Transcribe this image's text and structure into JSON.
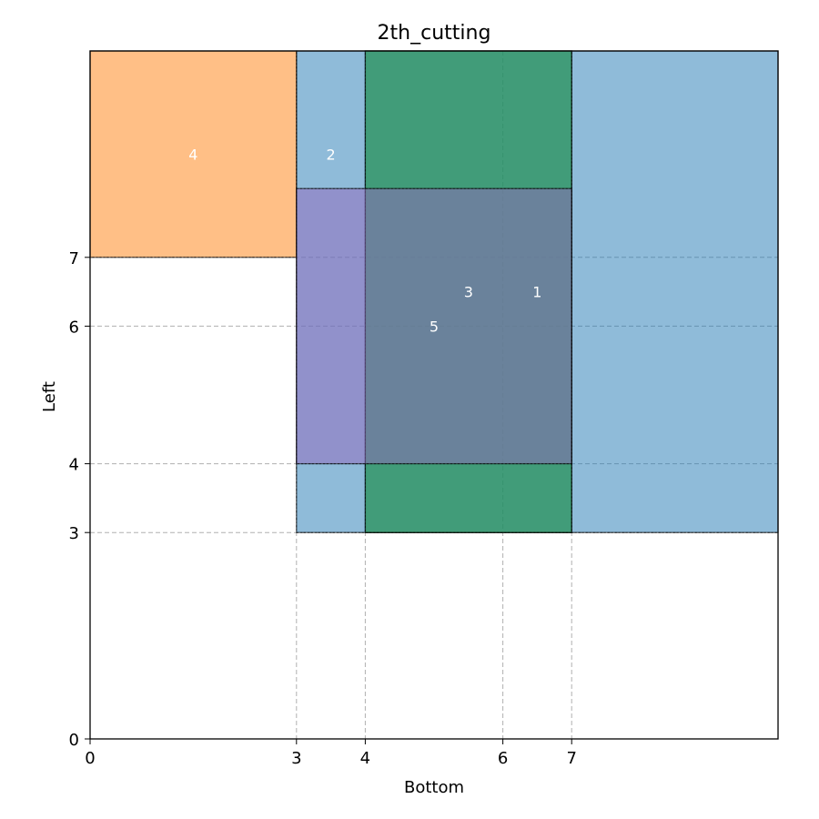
{
  "chart_data": {
    "type": "rectangle-packing",
    "title": "2th_cutting",
    "xlabel": "Bottom",
    "ylabel": "Left",
    "xlim": [
      0,
      10
    ],
    "ylim": [
      0,
      10
    ],
    "xticks": [
      0,
      3,
      4,
      6,
      7
    ],
    "yticks": [
      0,
      3,
      4,
      6,
      7
    ],
    "grid": true,
    "rectangles": [
      {
        "label": "1",
        "x0": 4,
        "y0": 3,
        "x1": 10,
        "y1": 10,
        "color": "#1f77b4"
      },
      {
        "label": "2",
        "x0": 3,
        "y0": 3,
        "x1": 7,
        "y1": 10,
        "color": "#1f77b4"
      },
      {
        "label": "3",
        "x0": 4,
        "y0": 3,
        "x1": 7,
        "y1": 10,
        "color": "#2ca02c"
      },
      {
        "label": "4",
        "x0": 0,
        "y0": 7,
        "x1": 3,
        "y1": 10,
        "color": "#ff7f0e"
      },
      {
        "label": "5",
        "x0": 3,
        "y0": 4,
        "x1": 7,
        "y1": 8,
        "color": "#9467bd"
      }
    ],
    "rectangle_labels": [
      {
        "label": "1",
        "x": 6.5,
        "y": 6.5
      },
      {
        "label": "2",
        "x": 3.5,
        "y": 8.5
      },
      {
        "label": "3",
        "x": 5.5,
        "y": 6.5
      },
      {
        "label": "4",
        "x": 1.5,
        "y": 8.5
      },
      {
        "label": "5",
        "x": 5,
        "y": 6
      }
    ]
  }
}
